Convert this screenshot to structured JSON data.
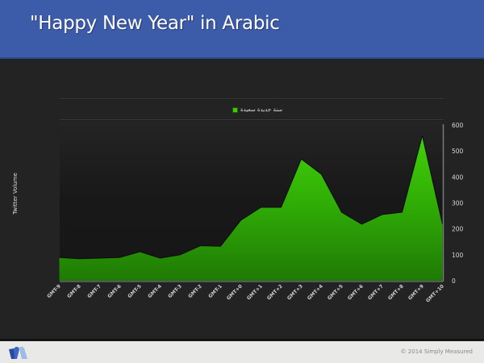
{
  "header": {
    "title": "\"Happy New Year\" in Arabic"
  },
  "footer": {
    "copyright": "© 2014 Simply Measured",
    "logo_icon": "simply-measured-logo-icon"
  },
  "colors": {
    "header_bg": "#3c5ba9",
    "slide_bg": "#232323",
    "area_top": "#3dca08",
    "area_bottom": "#1f7a05",
    "footer_bg": "#e9e9e7"
  },
  "chart_data": {
    "type": "area",
    "title": "",
    "xlabel": "",
    "ylabel": "Twitter Volume",
    "legend": [
      "سنة جديدة سعيدة"
    ],
    "legend_position": "top",
    "y_axis_position": "right",
    "ylim": [
      0,
      600
    ],
    "yticks": [
      0,
      100,
      200,
      300,
      400,
      500,
      600
    ],
    "grid": false,
    "categories": [
      "GMT-9",
      "GMT-8",
      "GMT-7",
      "GMT-6",
      "GMT-5",
      "GMT-4",
      "GMT-3",
      "GMT-2",
      "GMT-1",
      "GMT+0",
      "GMT+1",
      "GMT+2",
      "GMT+3",
      "GMT+4",
      "GMT+5",
      "GMT+6",
      "GMT+7",
      "GMT+8",
      "GMT+9",
      "GMT+10"
    ],
    "series": [
      {
        "name": "سنة جديدة سعيدة",
        "values": [
          90,
          85,
          87,
          90,
          112,
          87,
          100,
          135,
          133,
          233,
          283,
          283,
          469,
          410,
          264,
          218,
          255,
          264,
          559,
          218
        ]
      }
    ]
  }
}
